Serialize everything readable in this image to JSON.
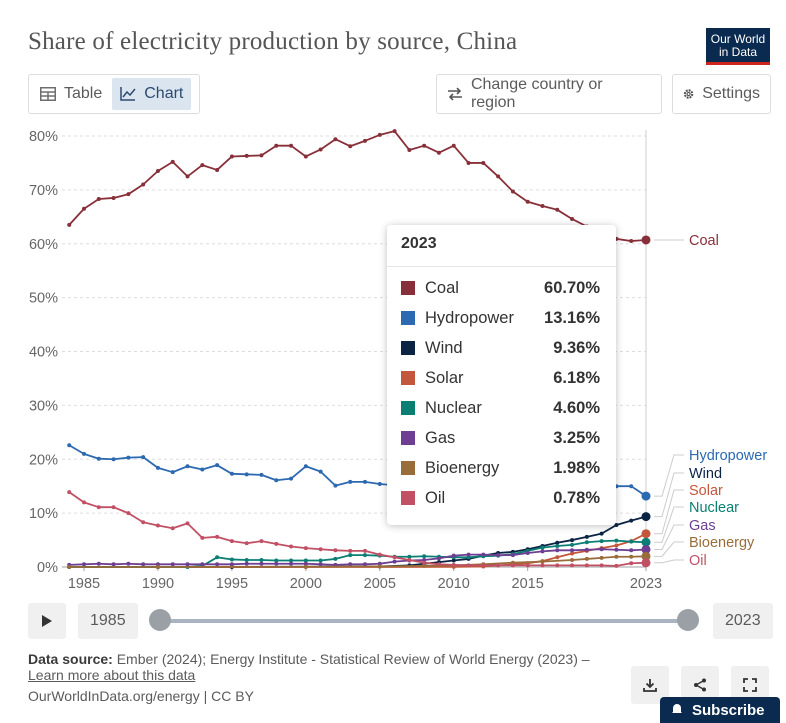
{
  "header": {
    "title": "Share of electricity production by source, China",
    "logo_line1": "Our World",
    "logo_line2": "in Data"
  },
  "toolbar": {
    "table_label": "Table",
    "chart_label": "Chart",
    "change_country_label": "Change country or region",
    "settings_label": "Settings"
  },
  "chart_data": {
    "type": "line",
    "title": "Share of electricity production by source, China",
    "xlabel": "",
    "ylabel": "",
    "xlim": [
      1985,
      2023
    ],
    "ylim": [
      0,
      80
    ],
    "x_ticks": [
      1985,
      1990,
      1995,
      2000,
      2005,
      2010,
      2015,
      2023
    ],
    "y_ticks": [
      0,
      10,
      20,
      30,
      40,
      50,
      60,
      70,
      80
    ],
    "y_tick_suffix": "%",
    "grid": "horizontal",
    "legend": "right-labels",
    "hover_year": 2023,
    "series": [
      {
        "name": "Coal",
        "color": "#883039",
        "x": [
          1984,
          1985,
          1986,
          1987,
          1988,
          1989,
          1990,
          1991,
          1992,
          1993,
          1994,
          1995,
          1996,
          1997,
          1998,
          1999,
          2000,
          2001,
          2002,
          2003,
          2004,
          2005,
          2006,
          2007,
          2008,
          2009,
          2010,
          2011,
          2012,
          2013,
          2014,
          2015,
          2016,
          2017,
          2018,
          2019,
          2020,
          2021,
          2022,
          2023
        ],
        "values": [
          63.5,
          66.5,
          68.3,
          68.5,
          69.2,
          71.0,
          73.5,
          75.2,
          72.5,
          74.6,
          73.7,
          76.2,
          76.3,
          76.4,
          78.2,
          78.2,
          76.2,
          77.5,
          79.4,
          78.1,
          79.1,
          80.2,
          80.9,
          77.4,
          78.2,
          76.9,
          78.2,
          75.0,
          75.0,
          72.5,
          69.7,
          67.8,
          67.0,
          66.3,
          64.6,
          63.2,
          62.2,
          60.9,
          60.5,
          60.7
        ]
      },
      {
        "name": "Hydropower",
        "color": "#2c69b0",
        "x": [
          1984,
          1985,
          1986,
          1987,
          1988,
          1989,
          1990,
          1991,
          1992,
          1993,
          1994,
          1995,
          1996,
          1997,
          1998,
          1999,
          2000,
          2001,
          2002,
          2003,
          2004,
          2005,
          2006,
          2007,
          2008,
          2009,
          2010,
          2011,
          2012,
          2013,
          2014,
          2015,
          2016,
          2017,
          2018,
          2019,
          2020,
          2021,
          2022,
          2023
        ],
        "values": [
          22.6,
          21.0,
          20.1,
          20.0,
          20.3,
          20.4,
          18.4,
          17.6,
          18.7,
          18.1,
          18.9,
          17.3,
          17.2,
          17.1,
          16.1,
          16.4,
          18.7,
          17.7,
          15.1,
          15.8,
          15.8,
          15.4,
          15.2,
          14.8,
          15.5,
          14.9,
          15.3,
          14.9,
          16.6,
          16.2,
          17.1,
          16.9,
          16.4,
          16.3,
          15.9,
          16.8,
          16.9,
          15.0,
          15.0,
          13.16
        ]
      },
      {
        "name": "Wind",
        "color": "#0c2444",
        "x": [
          1984,
          1990,
          1995,
          2000,
          2005,
          2007,
          2008,
          2009,
          2010,
          2011,
          2012,
          2013,
          2014,
          2015,
          2016,
          2017,
          2018,
          2019,
          2020,
          2021,
          2022,
          2023
        ],
        "values": [
          0,
          0,
          0,
          0.05,
          0.1,
          0.3,
          0.6,
          0.9,
          1.2,
          1.5,
          2.1,
          2.6,
          2.8,
          3.3,
          3.9,
          4.5,
          5.0,
          5.6,
          6.2,
          7.8,
          8.6,
          9.36
        ]
      },
      {
        "name": "Solar",
        "color": "#c2573b",
        "x": [
          1984,
          1990,
          2000,
          2010,
          2012,
          2013,
          2014,
          2015,
          2016,
          2017,
          2018,
          2019,
          2020,
          2021,
          2022,
          2023
        ],
        "values": [
          0,
          0,
          0,
          0.02,
          0.1,
          0.3,
          0.5,
          0.7,
          1.1,
          1.8,
          2.5,
          3.0,
          3.5,
          4.0,
          4.8,
          6.18
        ]
      },
      {
        "name": "Nuclear",
        "color": "#0b7f74",
        "x": [
          1984,
          1990,
          1992,
          1993,
          1994,
          1995,
          1996,
          1997,
          1998,
          1999,
          2000,
          2001,
          2002,
          2003,
          2004,
          2005,
          2006,
          2007,
          2008,
          2009,
          2010,
          2011,
          2012,
          2013,
          2014,
          2015,
          2016,
          2017,
          2018,
          2019,
          2020,
          2021,
          2022,
          2023
        ],
        "values": [
          0,
          0,
          0,
          0.2,
          1.8,
          1.4,
          1.3,
          1.3,
          1.2,
          1.2,
          1.2,
          1.2,
          1.5,
          2.2,
          2.2,
          2.1,
          1.9,
          1.9,
          2.0,
          1.9,
          1.8,
          1.8,
          2.0,
          2.1,
          2.4,
          3.0,
          3.6,
          3.9,
          4.1,
          4.6,
          4.8,
          4.9,
          4.7,
          4.6
        ]
      },
      {
        "name": "Gas",
        "color": "#6d3e91",
        "x": [
          1984,
          1985,
          1986,
          1987,
          1988,
          1989,
          1990,
          1991,
          1992,
          1993,
          1994,
          1995,
          1996,
          1997,
          1998,
          1999,
          2000,
          2001,
          2002,
          2003,
          2004,
          2005,
          2006,
          2007,
          2008,
          2009,
          2010,
          2011,
          2012,
          2013,
          2014,
          2015,
          2016,
          2017,
          2018,
          2019,
          2020,
          2021,
          2022,
          2023
        ],
        "values": [
          0.4,
          0.5,
          0.6,
          0.5,
          0.6,
          0.5,
          0.5,
          0.5,
          0.5,
          0.5,
          0.5,
          0.5,
          0.6,
          0.6,
          0.6,
          0.6,
          0.6,
          0.5,
          0.4,
          0.5,
          0.5,
          0.6,
          1.0,
          1.2,
          1.3,
          1.6,
          2.1,
          2.3,
          2.3,
          2.2,
          2.2,
          2.6,
          2.9,
          3.1,
          3.1,
          3.2,
          3.3,
          3.2,
          3.1,
          3.25
        ]
      },
      {
        "name": "Bioenergy",
        "color": "#996d39",
        "x": [
          1984,
          1990,
          2000,
          2005,
          2008,
          2010,
          2012,
          2014,
          2016,
          2018,
          2019,
          2020,
          2021,
          2022,
          2023
        ],
        "values": [
          0,
          0,
          0.05,
          0.1,
          0.2,
          0.3,
          0.5,
          0.8,
          1.0,
          1.3,
          1.5,
          1.7,
          1.9,
          1.9,
          1.98
        ]
      },
      {
        "name": "Oil",
        "color": "#c15065",
        "x": [
          1984,
          1985,
          1986,
          1987,
          1988,
          1989,
          1990,
          1991,
          1992,
          1993,
          1994,
          1995,
          1996,
          1997,
          1998,
          1999,
          2000,
          2001,
          2002,
          2003,
          2004,
          2005,
          2006,
          2007,
          2008,
          2009,
          2010,
          2011,
          2012,
          2013,
          2014,
          2015,
          2016,
          2017,
          2018,
          2019,
          2020,
          2021,
          2022,
          2023
        ],
        "values": [
          13.9,
          12.0,
          11.1,
          11.1,
          10.0,
          8.3,
          7.7,
          7.2,
          8.1,
          5.4,
          5.6,
          4.8,
          4.4,
          4.8,
          4.3,
          3.8,
          3.5,
          3.3,
          3.1,
          3.0,
          3.0,
          2.3,
          1.8,
          1.3,
          0.8,
          0.5,
          0.4,
          0.3,
          0.3,
          0.3,
          0.3,
          0.3,
          0.3,
          0.3,
          0.3,
          0.3,
          0.3,
          0.2,
          0.7,
          0.78
        ]
      }
    ],
    "tooltip": {
      "year": "2023",
      "rows": [
        {
          "name": "Coal",
          "value": "60.70%",
          "color": "#883039"
        },
        {
          "name": "Hydropower",
          "value": "13.16%",
          "color": "#2c69b0"
        },
        {
          "name": "Wind",
          "value": "9.36%",
          "color": "#0c2444"
        },
        {
          "name": "Solar",
          "value": "6.18%",
          "color": "#c2573b"
        },
        {
          "name": "Nuclear",
          "value": "4.60%",
          "color": "#0b7f74"
        },
        {
          "name": "Gas",
          "value": "3.25%",
          "color": "#6d3e91"
        },
        {
          "name": "Bioenergy",
          "value": "1.98%",
          "color": "#996d39"
        },
        {
          "name": "Oil",
          "value": "0.78%",
          "color": "#c15065"
        }
      ]
    }
  },
  "timeline": {
    "start_year": "1985",
    "end_year": "2023"
  },
  "footer": {
    "source_label": "Data source:",
    "source_text": "Ember (2024); Energy Institute - Statistical Review of World Energy (2023) –",
    "learn_more": "Learn more about this data",
    "url_license": "OurWorldInData.org/energy | CC BY",
    "subscribe_label": "Subscribe"
  }
}
